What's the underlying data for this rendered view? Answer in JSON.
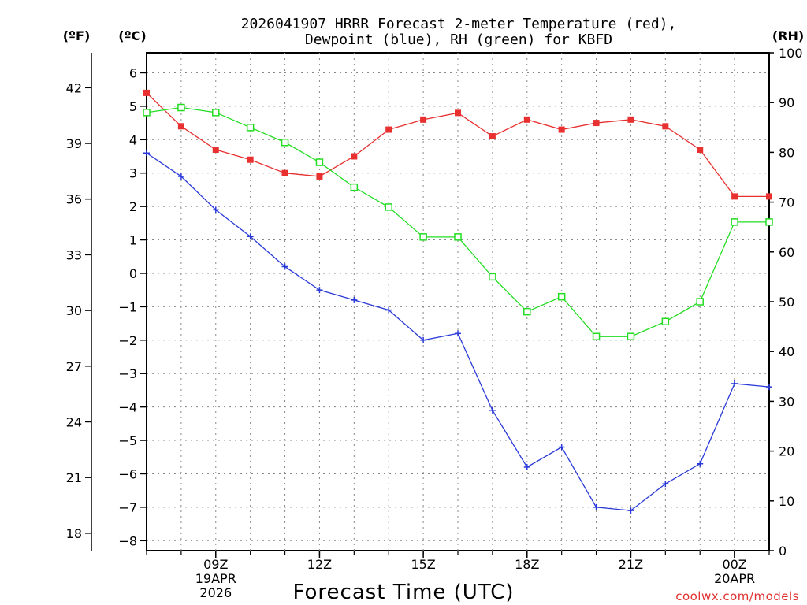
{
  "chart_data": {
    "type": "line",
    "title_line1": "2026041907 HRRR Forecast 2-meter Temperature (red),",
    "title_line2": "Dewpoint (blue), RH (green) for KBFD",
    "xlabel": "Forecast Time (UTC)",
    "y_left_outer_label": "(ºF)",
    "y_left_inner_label": "(ºC)",
    "y_right_label": "(RH)",
    "credit": "coolwx.com/models",
    "x_hours": [
      7,
      8,
      9,
      10,
      11,
      12,
      13,
      14,
      15,
      16,
      17,
      18,
      19,
      20,
      21,
      22,
      23,
      24,
      25
    ],
    "xlim": [
      7,
      25
    ],
    "x_ticks": [
      {
        "hour": 9,
        "line1": "09Z",
        "line2": "19APR",
        "line3": "2026"
      },
      {
        "hour": 12,
        "line1": "12Z",
        "line2": "",
        "line3": ""
      },
      {
        "hour": 15,
        "line1": "15Z",
        "line2": "",
        "line3": ""
      },
      {
        "hour": 18,
        "line1": "18Z",
        "line2": "",
        "line3": ""
      },
      {
        "hour": 21,
        "line1": "21Z",
        "line2": "",
        "line3": ""
      },
      {
        "hour": 24,
        "line1": "00Z",
        "line2": "20APR",
        "line3": ""
      }
    ],
    "celsius_ticks": [
      "6",
      "5",
      "4",
      "3",
      "2",
      "1",
      "0",
      "−1",
      "−2",
      "−3",
      "−4",
      "−5",
      "−6",
      "−7",
      "−8"
    ],
    "celsius_tick_values": [
      6,
      5,
      4,
      3,
      2,
      1,
      0,
      -1,
      -2,
      -3,
      -4,
      -5,
      -6,
      -7,
      -8
    ],
    "ylim_c": [
      -8.3,
      6.6
    ],
    "fahrenheit_ticks": [
      "42",
      "39",
      "36",
      "33",
      "30",
      "27",
      "24",
      "21",
      "18"
    ],
    "fahrenheit_tick_values": [
      42,
      39,
      36,
      33,
      30,
      27,
      24,
      21,
      18
    ],
    "rh_ticks": [
      "100",
      "90",
      "80",
      "70",
      "60",
      "50",
      "40",
      "30",
      "20",
      "10",
      "0"
    ],
    "rh_tick_values": [
      100,
      90,
      80,
      70,
      60,
      50,
      40,
      30,
      20,
      10,
      0
    ],
    "series": [
      {
        "name": "Temperature",
        "unit": "C",
        "color": "#e83030",
        "marker": "filled-square",
        "values": [
          5.4,
          4.4,
          3.7,
          3.4,
          3.0,
          2.9,
          3.5,
          4.3,
          4.6,
          4.8,
          4.1,
          4.6,
          4.3,
          4.5,
          4.6,
          4.4,
          3.7,
          2.3,
          2.3
        ]
      },
      {
        "name": "Dewpoint",
        "unit": "C",
        "color": "#2a3ad8",
        "marker": "plus",
        "values": [
          3.6,
          2.9,
          1.9,
          1.1,
          0.2,
          -0.5,
          -0.8,
          -1.1,
          -2.0,
          -1.8,
          -4.1,
          -5.8,
          -5.2,
          -7.0,
          -7.1,
          -6.3,
          -5.7,
          -3.3,
          -3.4
        ]
      },
      {
        "name": "RH",
        "unit": "%",
        "color": "#22dd22",
        "marker": "open-square",
        "values": [
          88,
          89,
          88,
          85,
          82,
          78,
          73,
          69,
          63,
          63,
          55,
          48,
          51,
          43,
          43,
          46,
          50,
          66,
          66
        ]
      }
    ]
  }
}
